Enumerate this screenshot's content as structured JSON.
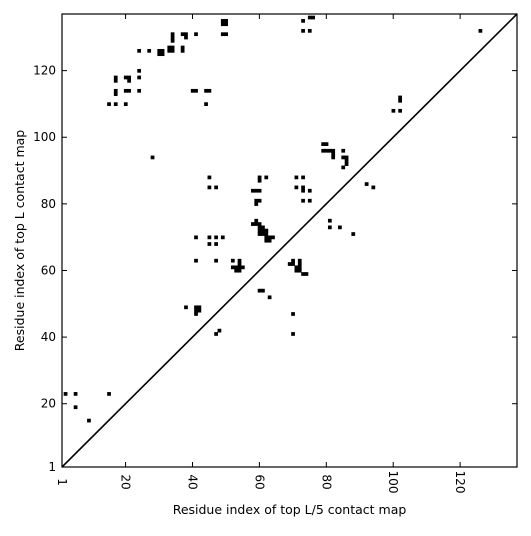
{
  "chart_data": {
    "type": "heatmap",
    "title": "",
    "xlabel": "Residue index of top L/5 contact map",
    "ylabel": "Residue index of top L contact map",
    "xlim": [
      1,
      137
    ],
    "ylim": [
      1,
      137
    ],
    "xticks": [
      1,
      20,
      40,
      60,
      80,
      100,
      120
    ],
    "yticks": [
      1,
      20,
      40,
      60,
      80,
      100,
      120
    ],
    "xtick_labels": [
      "1",
      "20",
      "40",
      "60",
      "80",
      "100",
      "120"
    ],
    "ytick_labels": [
      "1",
      "20",
      "40",
      "60",
      "80",
      "100",
      "120"
    ],
    "diagonal": true,
    "grid": false,
    "cell_color": "#000000",
    "background_color": "#ffffff",
    "contacts": [
      [
        2,
        23
      ],
      [
        5,
        23
      ],
      [
        5,
        19
      ],
      [
        9,
        15
      ],
      [
        15,
        23
      ],
      [
        15,
        110
      ],
      [
        17,
        110
      ],
      [
        17,
        113
      ],
      [
        17,
        114
      ],
      [
        17,
        117
      ],
      [
        17,
        118
      ],
      [
        20,
        110
      ],
      [
        20,
        114
      ],
      [
        21,
        114
      ],
      [
        20,
        118
      ],
      [
        21,
        118
      ],
      [
        21,
        117
      ],
      [
        24,
        114
      ],
      [
        24,
        118
      ],
      [
        24,
        120
      ],
      [
        24,
        126
      ],
      [
        27,
        126
      ],
      [
        28,
        94
      ],
      [
        30,
        125
      ],
      [
        31,
        125
      ],
      [
        30,
        126
      ],
      [
        31,
        126
      ],
      [
        33,
        126
      ],
      [
        34,
        126
      ],
      [
        33,
        127
      ],
      [
        34,
        127
      ],
      [
        34,
        129
      ],
      [
        34,
        130
      ],
      [
        34,
        131
      ],
      [
        37,
        126
      ],
      [
        37,
        127
      ],
      [
        37,
        131
      ],
      [
        38,
        130
      ],
      [
        38,
        131
      ],
      [
        40,
        114
      ],
      [
        41,
        114
      ],
      [
        41,
        131
      ],
      [
        44,
        110
      ],
      [
        44,
        114
      ],
      [
        45,
        114
      ],
      [
        49,
        131
      ],
      [
        50,
        131
      ],
      [
        49,
        134
      ],
      [
        50,
        134
      ],
      [
        49,
        135
      ],
      [
        50,
        135
      ],
      [
        45,
        85
      ],
      [
        45,
        88
      ],
      [
        47,
        85
      ],
      [
        41,
        70
      ],
      [
        45,
        70
      ],
      [
        45,
        68
      ],
      [
        47,
        68
      ],
      [
        47,
        70
      ],
      [
        49,
        70
      ],
      [
        41,
        63
      ],
      [
        47,
        63
      ],
      [
        38,
        49
      ],
      [
        41,
        49
      ],
      [
        42,
        49
      ],
      [
        41,
        48
      ],
      [
        42,
        48
      ],
      [
        41,
        47
      ],
      [
        47,
        41
      ],
      [
        48,
        42
      ],
      [
        52,
        63
      ],
      [
        52,
        61
      ],
      [
        53,
        61
      ],
      [
        54,
        61
      ],
      [
        54,
        62
      ],
      [
        54,
        63
      ],
      [
        55,
        61
      ],
      [
        53,
        60
      ],
      [
        54,
        60
      ],
      [
        58,
        74
      ],
      [
        59,
        74
      ],
      [
        59,
        75
      ],
      [
        60,
        74
      ],
      [
        60,
        73
      ],
      [
        61,
        73
      ],
      [
        61,
        72
      ],
      [
        62,
        72
      ],
      [
        60,
        72
      ],
      [
        60,
        71
      ],
      [
        61,
        71
      ],
      [
        62,
        71
      ],
      [
        62,
        70
      ],
      [
        63,
        70
      ],
      [
        64,
        70
      ],
      [
        62,
        69
      ],
      [
        63,
        69
      ],
      [
        62,
        72
      ],
      [
        58,
        84
      ],
      [
        59,
        84
      ],
      [
        60,
        84
      ],
      [
        59,
        80
      ],
      [
        59,
        81
      ],
      [
        60,
        81
      ],
      [
        60,
        87
      ],
      [
        60,
        88
      ],
      [
        62,
        88
      ],
      [
        60,
        54
      ],
      [
        61,
        54
      ],
      [
        63,
        52
      ],
      [
        69,
        62
      ],
      [
        70,
        62
      ],
      [
        70,
        63
      ],
      [
        71,
        61
      ],
      [
        72,
        61
      ],
      [
        71,
        60
      ],
      [
        72,
        60
      ],
      [
        72,
        62
      ],
      [
        72,
        63
      ],
      [
        73,
        59
      ],
      [
        74,
        59
      ],
      [
        70,
        47
      ],
      [
        70,
        41
      ],
      [
        71,
        85
      ],
      [
        71,
        88
      ],
      [
        73,
        88
      ],
      [
        73,
        85
      ],
      [
        73,
        84
      ],
      [
        75,
        84
      ],
      [
        73,
        81
      ],
      [
        75,
        81
      ],
      [
        73,
        132
      ],
      [
        75,
        132
      ],
      [
        73,
        135
      ],
      [
        75,
        136
      ],
      [
        76,
        136
      ],
      [
        79,
        96
      ],
      [
        80,
        96
      ],
      [
        79,
        98
      ],
      [
        80,
        98
      ],
      [
        81,
        96
      ],
      [
        82,
        96
      ],
      [
        82,
        95
      ],
      [
        82,
        94
      ],
      [
        81,
        75
      ],
      [
        81,
        73
      ],
      [
        84,
        73
      ],
      [
        88,
        71
      ],
      [
        85,
        91
      ],
      [
        85,
        94
      ],
      [
        86,
        94
      ],
      [
        86,
        93
      ],
      [
        86,
        92
      ],
      [
        85,
        96
      ],
      [
        92,
        86
      ],
      [
        94,
        85
      ],
      [
        100,
        108
      ],
      [
        102,
        108
      ],
      [
        102,
        111
      ],
      [
        102,
        112
      ],
      [
        126,
        132
      ]
    ]
  }
}
